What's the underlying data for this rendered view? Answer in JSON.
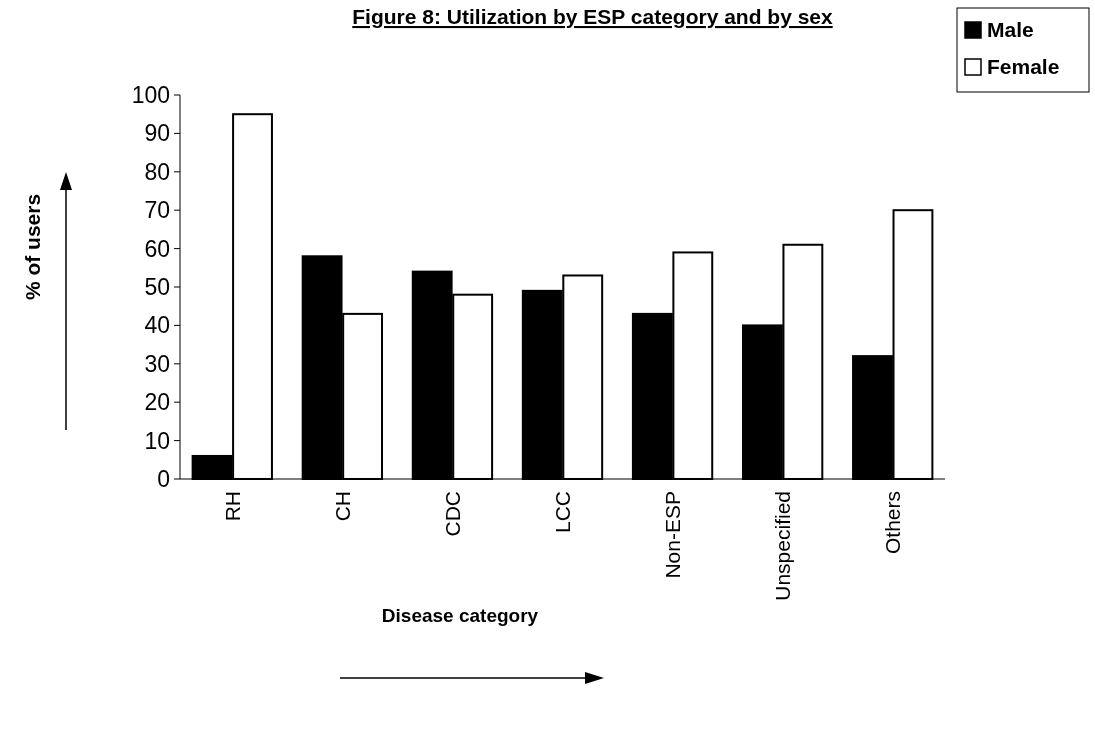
{
  "chart_data": {
    "type": "bar",
    "title": "Figure 8: Utilization by ESP category and by sex",
    "xlabel": "Disease category",
    "ylabel": "% of users",
    "categories": [
      "RH",
      "CH",
      "CDC",
      "LCC",
      "Non-ESP",
      "Unspecified",
      "Others"
    ],
    "series": [
      {
        "name": "Male",
        "color": "#000000",
        "values": [
          6,
          58,
          54,
          49,
          43,
          40,
          32
        ]
      },
      {
        "name": "Female",
        "color": "#ffffff",
        "values": [
          95,
          43,
          48,
          53,
          59,
          61,
          70
        ]
      }
    ],
    "ylim": [
      0,
      100
    ],
    "yticks": [
      0,
      10,
      20,
      30,
      40,
      50,
      60,
      70,
      80,
      90,
      100
    ],
    "grid": false,
    "legend": "top right"
  }
}
